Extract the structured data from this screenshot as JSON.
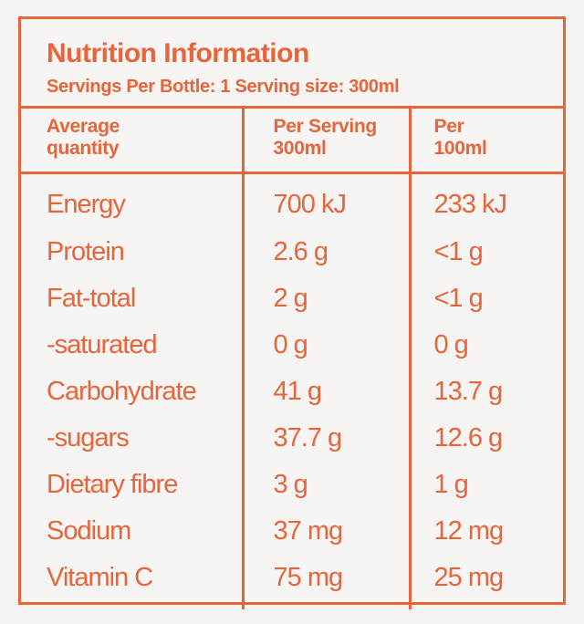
{
  "title": "Nutrition Information",
  "subtitle": "Servings Per Bottle: 1 Serving size: 300ml",
  "columns": {
    "quantity": [
      "Average",
      "quantity"
    ],
    "per_serving": [
      "Per Serving",
      "300ml"
    ],
    "per_100ml": [
      "Per",
      "100ml"
    ]
  },
  "rows": [
    {
      "name": "Energy",
      "per_serving": "700 kJ",
      "per_100ml": "233 kJ"
    },
    {
      "name": "Protein",
      "per_serving": "2.6 g",
      "per_100ml": "<1 g"
    },
    {
      "name": "Fat-total",
      "per_serving": "2 g",
      "per_100ml": "<1 g"
    },
    {
      "name": "-saturated",
      "per_serving": "0 g",
      "per_100ml": "0 g"
    },
    {
      "name": "Carbohydrate",
      "per_serving": "41 g",
      "per_100ml": "13.7 g"
    },
    {
      "name": "-sugars",
      "per_serving": "37.7 g",
      "per_100ml": "12.6 g"
    },
    {
      "name": "Dietary fibre",
      "per_serving": "3 g",
      "per_100ml": "1 g"
    },
    {
      "name": "Sodium",
      "per_serving": "37 mg",
      "per_100ml": "12 mg"
    },
    {
      "name": "Vitamin C",
      "per_serving": "75 mg",
      "per_100ml": "25 mg"
    }
  ],
  "colors": {
    "accent": "#e8643a",
    "background": "#f4f3f1"
  }
}
